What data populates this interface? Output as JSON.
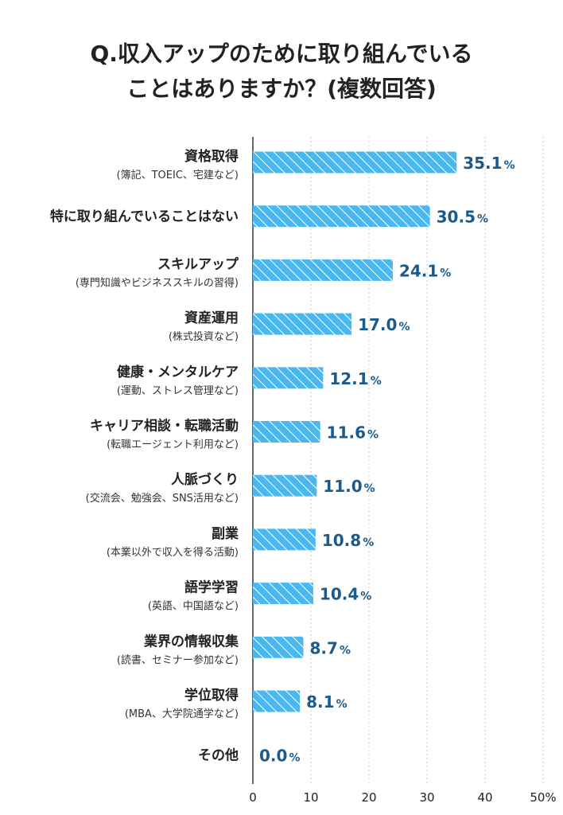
{
  "title": {
    "line1": "Q.収入アップのために取り組んでいる",
    "line2": "ことはありますか？(複数回答)"
  },
  "colors": {
    "bar": "#4ab8f0",
    "hatch": "#ffffff",
    "value_text": "#1b5a8a",
    "grid": "#c8c8c8",
    "axis": "#333333"
  },
  "chart_data": {
    "type": "bar",
    "orientation": "horizontal",
    "categories": [
      {
        "label": "資格取得",
        "sub": "(簿記、TOEIC、宅建など)"
      },
      {
        "label": "特に取り組んでいることはない",
        "sub": ""
      },
      {
        "label": "スキルアップ",
        "sub": "(専門知識やビジネススキルの習得)"
      },
      {
        "label": "資産運用",
        "sub": "(株式投資など)"
      },
      {
        "label": "健康・メンタルケア",
        "sub": "(運動、ストレス管理など)"
      },
      {
        "label": "キャリア相談・転職活動",
        "sub": "(転職エージェント利用など)"
      },
      {
        "label": "人脈づくり",
        "sub": "(交流会、勉強会、SNS活用など)"
      },
      {
        "label": "副業",
        "sub": "(本業以外で収入を得る活動)"
      },
      {
        "label": "語学学習",
        "sub": "(英語、中国語など)"
      },
      {
        "label": "業界の情報収集",
        "sub": "(読書、セミナー参加など)"
      },
      {
        "label": "学位取得",
        "sub": "(MBA、大学院通学など)"
      },
      {
        "label": "その他",
        "sub": ""
      }
    ],
    "values": [
      35.1,
      30.5,
      24.1,
      17.0,
      12.1,
      11.6,
      11.0,
      10.8,
      10.4,
      8.7,
      8.1,
      0.0
    ],
    "value_labels": [
      "35.1",
      "30.5",
      "24.1",
      "17.0",
      "12.1",
      "11.6",
      "11.0",
      "10.8",
      "10.4",
      "8.7",
      "8.1",
      "0.0"
    ],
    "value_unit": "%",
    "xlim": [
      0,
      50
    ],
    "xticks": [
      0,
      10,
      20,
      30,
      40,
      50
    ],
    "xtick_labels": [
      "0",
      "10",
      "20",
      "30",
      "40",
      "50%"
    ],
    "grid": true,
    "legend": "none"
  }
}
